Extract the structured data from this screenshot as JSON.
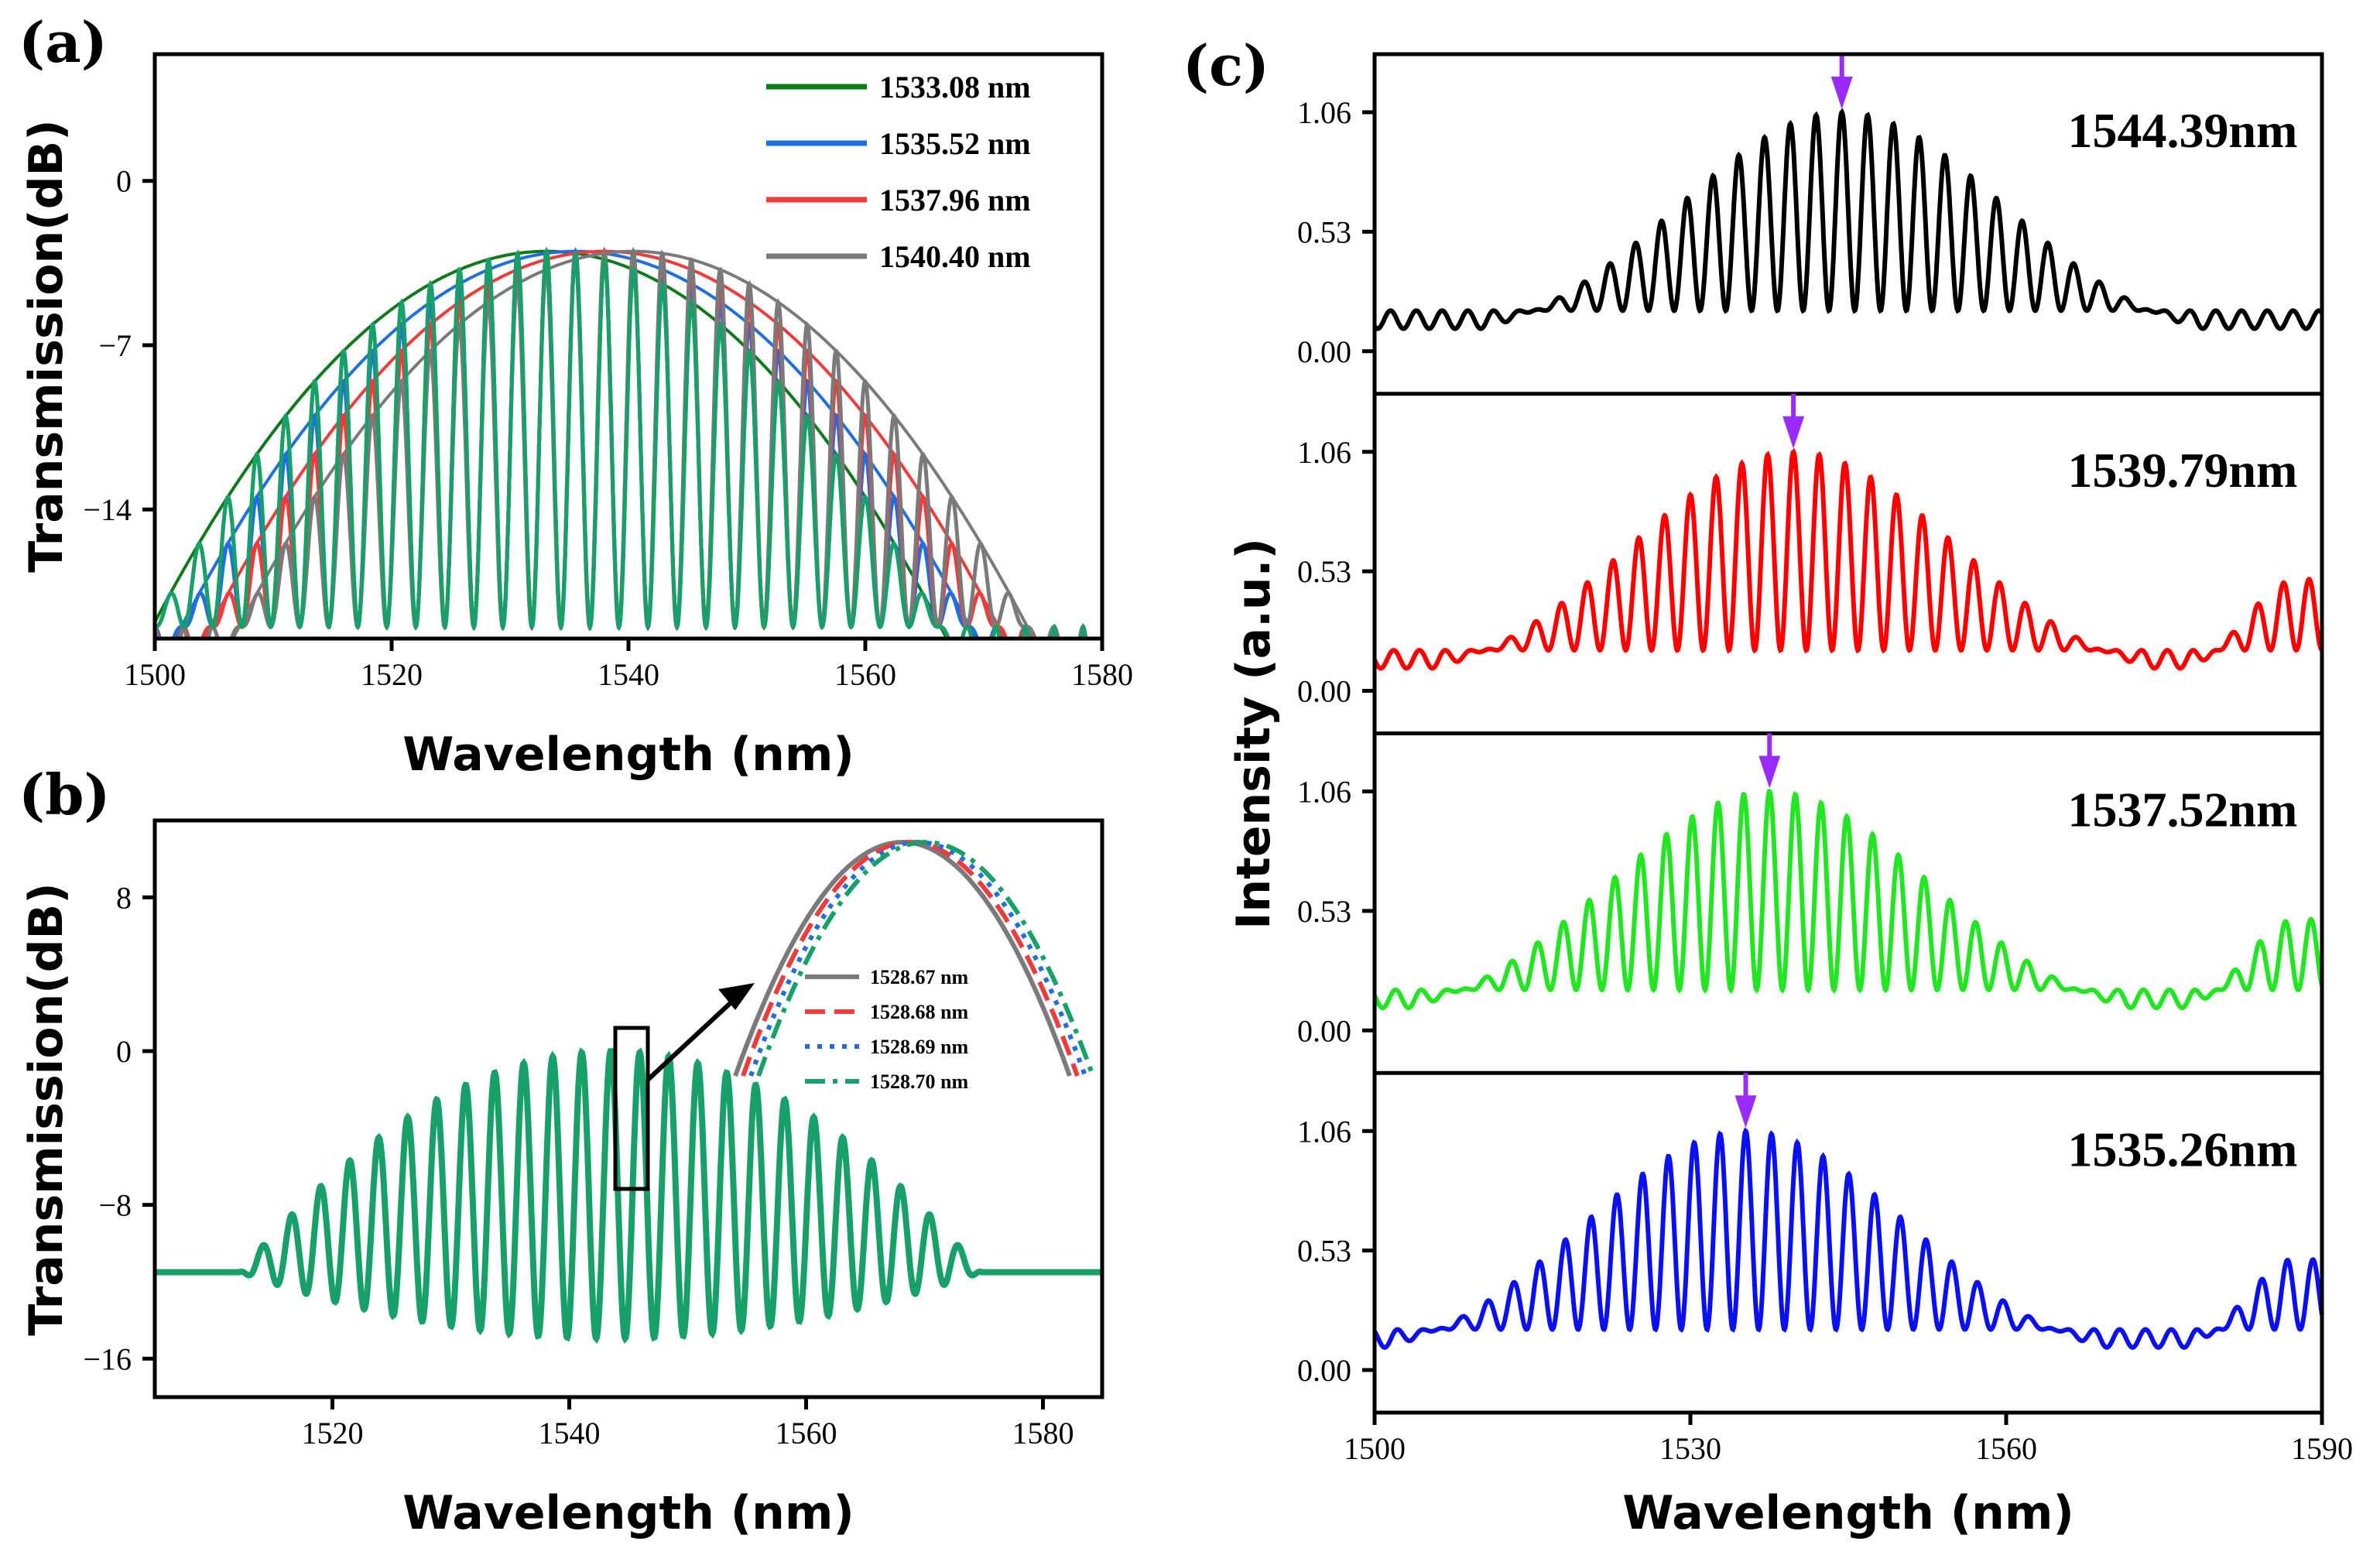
{
  "figure": {
    "panel_a_label": "(a)",
    "panel_b_label": "(b)",
    "panel_c_label": "(c)"
  },
  "chart_data": [
    {
      "id": "a",
      "type": "line",
      "xlabel": "Wavelength (nm)",
      "ylabel": "Transmission(dB)",
      "xlim": [
        1500,
        1580
      ],
      "ylim": [
        -19.5,
        5.4
      ],
      "xticks": [
        1500,
        1520,
        1540,
        1560,
        1580
      ],
      "yticks": [
        0,
        -7,
        -14
      ],
      "series": [
        {
          "name": "1533.08 nm",
          "color": "#0f7a1a",
          "center": 1533.08
        },
        {
          "name": "1535.52 nm",
          "color": "#1f6fe0",
          "center": 1535.52
        },
        {
          "name": "1537.96 nm",
          "color": "#ee3b3b",
          "center": 1537.96
        },
        {
          "name": "1540.40 nm",
          "color": "#7a7a7a",
          "center": 1540.4
        }
      ],
      "fringe_color": "#18a06a",
      "envelope_peak_db": -3,
      "fringe_min_db": -19
    },
    {
      "id": "b",
      "type": "line",
      "xlabel": "Wavelength (nm)",
      "ylabel": "Transmission(dB)",
      "xlim": [
        1505,
        1585
      ],
      "ylim": [
        -18,
        12
      ],
      "xticks": [
        1520,
        1540,
        1560,
        1580
      ],
      "yticks": [
        8,
        0,
        -8,
        -16
      ],
      "main_color": "#18a06a",
      "envelope_peak_db": 0,
      "fringe_min_db": -15,
      "inset_legend": [
        {
          "name": "1528.67 nm",
          "color": "#7a7a7a",
          "style": "solid"
        },
        {
          "name": "1528.68 nm",
          "color": "#ee3b3b",
          "style": "dash"
        },
        {
          "name": "1528.69 nm",
          "color": "#1f6fe0",
          "style": "dot"
        },
        {
          "name": "1528.70 nm",
          "color": "#18a06a",
          "style": "dashdot"
        }
      ]
    },
    {
      "id": "c",
      "type": "line",
      "xlabel": "Wavelength (nm)",
      "ylabel": "Intensity (a.u.)",
      "xlim": [
        1500,
        1590
      ],
      "xticks": [
        1500,
        1530,
        1560,
        1590
      ],
      "yticks": [
        1.06,
        0.53,
        0.0
      ],
      "ytick_labels": [
        "1.06",
        "0.53",
        "0.00"
      ],
      "subplots": [
        {
          "peak_label": "1544.39nm",
          "peak": 1544.39,
          "color": "#000000",
          "arrow_color": "#9a2bff"
        },
        {
          "peak_label": "1539.79nm",
          "peak": 1539.79,
          "color": "#ff0000",
          "arrow_color": "#9a2bff"
        },
        {
          "peak_label": "1537.52nm",
          "peak": 1537.52,
          "color": "#22e622",
          "arrow_color": "#9a2bff"
        },
        {
          "peak_label": "1535.26nm",
          "peak": 1535.26,
          "color": "#0a10f0",
          "arrow_color": "#9a2bff"
        }
      ]
    }
  ]
}
